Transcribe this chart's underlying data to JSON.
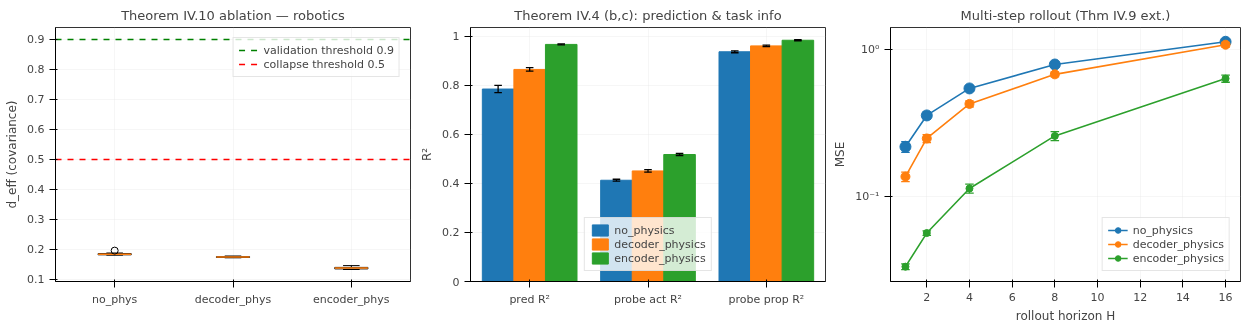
{
  "chart_data": [
    {
      "type": "box",
      "title": "Theorem IV.10 ablation — robotics",
      "ylabel": "d_eff (covariance)",
      "categories": [
        "no_phys",
        "decoder_phys",
        "encoder_phys"
      ],
      "boxes": [
        {
          "low": 0.181,
          "q1": 0.182,
          "median": 0.184,
          "q3": 0.186,
          "high": 0.188,
          "outliers": [
            0.196
          ]
        },
        {
          "low": 0.172,
          "q1": 0.173,
          "median": 0.175,
          "q3": 0.176,
          "high": 0.178
        },
        {
          "low": 0.133,
          "q1": 0.135,
          "median": 0.138,
          "q3": 0.14,
          "high": 0.146
        }
      ],
      "ylim": [
        0.093,
        0.94
      ],
      "yticks": [
        0.1,
        0.2,
        0.3,
        0.4,
        0.5,
        0.6,
        0.7,
        0.8,
        0.9
      ],
      "ref_lines": [
        {
          "axis": "y",
          "value": 0.9,
          "label": "validation threshold 0.9",
          "color": "#008000",
          "line_style": "dashed"
        },
        {
          "axis": "y",
          "value": 0.5,
          "label": "collapse threshold 0.5",
          "color": "#ff0000",
          "line_style": "dashed"
        }
      ],
      "grid": true,
      "legend": "top right"
    },
    {
      "type": "bar",
      "title": "Theorem IV.4 (b,c): prediction & task info",
      "ylabel": "R²",
      "categories": [
        "pred R²",
        "probe act R²",
        "probe prop R²"
      ],
      "series": [
        {
          "name": "no_physics",
          "color": "#1f77b4",
          "values": [
            0.785,
            0.413,
            0.937
          ],
          "errors": [
            0.015,
            0.004,
            0.004
          ]
        },
        {
          "name": "decoder_physics",
          "color": "#ff7f0e",
          "values": [
            0.865,
            0.451,
            0.961
          ],
          "errors": [
            0.007,
            0.005,
            0.003
          ]
        },
        {
          "name": "encoder_physics",
          "color": "#2ca02c",
          "values": [
            0.967,
            0.518,
            0.984
          ],
          "errors": [
            0.002,
            0.004,
            0.002
          ]
        }
      ],
      "ylim": [
        0,
        1.036
      ],
      "yticks": [
        0.0,
        0.2,
        0.4,
        0.6,
        0.8,
        1.0
      ],
      "grid": true,
      "legend": "bottom"
    },
    {
      "type": "line",
      "title": "Multi-step rollout (Thm IV.9 ext.)",
      "xlabel": "rollout horizon H",
      "ylabel": "MSE",
      "x": [
        1,
        2,
        4,
        8,
        16
      ],
      "series": [
        {
          "name": "no_physics",
          "color": "#1f77b4",
          "values": [
            0.217,
            0.354,
            0.54,
            0.785,
            1.12
          ],
          "errors": [
            0.018,
            0.02,
            0.025,
            0.03,
            0.04
          ]
        },
        {
          "name": "decoder_physics",
          "color": "#ff7f0e",
          "values": [
            0.136,
            0.247,
            0.424,
            0.673,
            1.07
          ],
          "errors": [
            0.01,
            0.015,
            0.02,
            0.025,
            0.04
          ]
        },
        {
          "name": "encoder_physics",
          "color": "#2ca02c",
          "values": [
            0.0333,
            0.0563,
            0.113,
            0.257,
            0.63
          ],
          "errors": [
            0.0015,
            0.002,
            0.008,
            0.018,
            0.035
          ]
        }
      ],
      "log": "y",
      "xlim": [
        0.3,
        16.7
      ],
      "xticks": [
        2,
        4,
        6,
        8,
        10,
        12,
        14,
        16
      ],
      "ylim": [
        0.0264,
        1.4
      ],
      "yticks": [
        {
          "value": 0.1,
          "label": "10⁻¹"
        },
        {
          "value": 1,
          "label": "10⁰"
        }
      ],
      "marker": "circle",
      "line_style": "solid",
      "grid": true,
      "legend": "bottom right"
    }
  ]
}
